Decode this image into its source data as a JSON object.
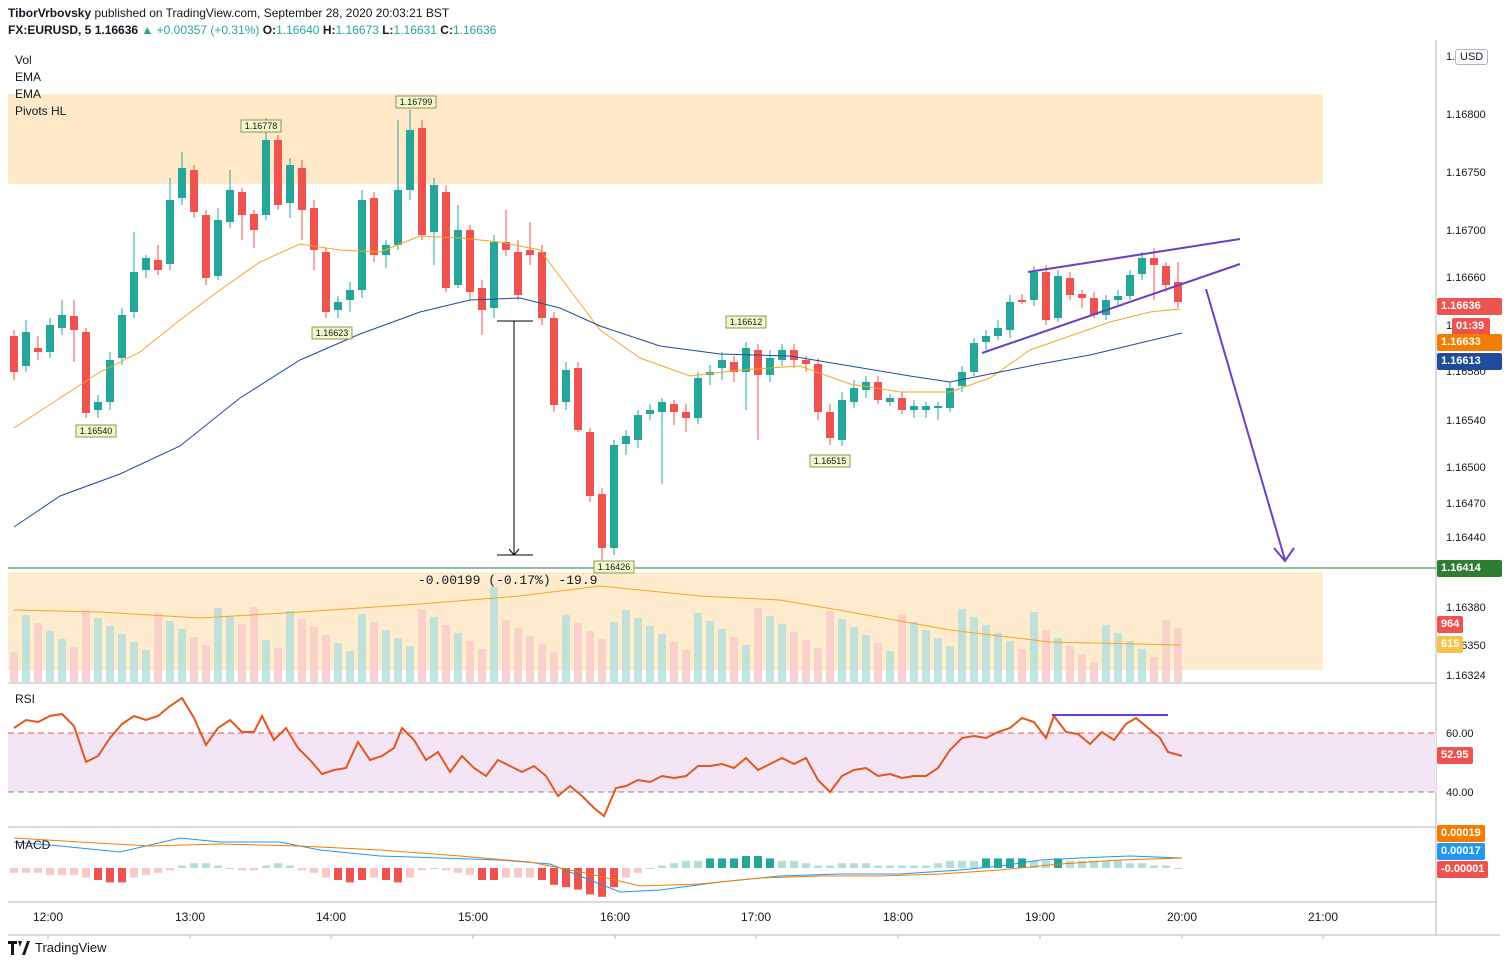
{
  "header": {
    "publisher": "TiborVrbovsky",
    "published_text": "published on TradingView.com, September 28, 2020 20:03:21 BST",
    "symbol": "FX:EURUSD, 5",
    "last": "1.16636",
    "change": "▲ +0.00357 (+0.31%)",
    "o_label": "O:",
    "o": "1.16640",
    "h_label": "H:",
    "h": "1.16673",
    "l_label": "L:",
    "l": "1.16631",
    "c_label": "C:",
    "c": "1.16636"
  },
  "indicators": [
    "Vol",
    "EMA",
    "EMA",
    "Pivots HL"
  ],
  "rsi_label": "RSI",
  "macd_label": "MACD",
  "currency": "USD",
  "footer_brand": "TradingView",
  "measure_label": "-0.00199 (-0.17%) -19.9",
  "colors": {
    "up": "#26a69a",
    "down": "#ef5350",
    "ema_fast": "#f5a623",
    "ema_slow": "#1e4b9b",
    "drawing": "#6a3fc9",
    "rsi": "#e4571d"
  },
  "chart_data": {
    "type": "candlestick",
    "x_axis_ticks": [
      "12:00",
      "13:00",
      "14:00",
      "15:00",
      "16:00",
      "17:00",
      "18:00",
      "19:00",
      "20:00",
      "21:00"
    ],
    "y_ticks": [
      "1.16850",
      "1.16800",
      "1.16750",
      "1.16700",
      "1.16660",
      "1.16620",
      "1.16580",
      "1.16540",
      "1.16500",
      "1.16470",
      "1.16440",
      "1.16380",
      "1.16350",
      "1.16324"
    ],
    "price_labels": [
      {
        "value": "1.16636",
        "color": "#ef5350"
      },
      {
        "value": "01:39",
        "color": "#ef5350"
      },
      {
        "value": "1.16633",
        "color": "#f57c00"
      },
      {
        "value": "1.16613",
        "color": "#1e4b9b"
      },
      {
        "value": "1.16414",
        "color": "#2e7d32"
      }
    ],
    "pivots": [
      "1.16778",
      "1.16799",
      "1.16540",
      "1.16623",
      "1.16612",
      "1.16515",
      "1.16426"
    ],
    "volume_labels": [
      "964",
      "615"
    ],
    "rsi": {
      "levels": [
        "60.00",
        "40.00"
      ],
      "current": "52.95"
    },
    "macd": {
      "labels": [
        "0.00019",
        "0.00017",
        "-0.00001"
      ]
    }
  }
}
